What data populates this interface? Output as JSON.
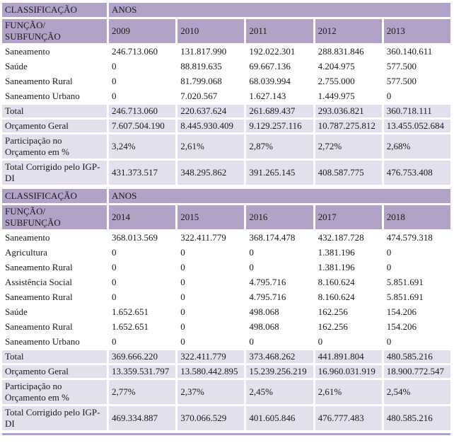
{
  "colors": {
    "header_bg": "#b2a2c7",
    "stripe_bg": "#e4dfec",
    "text": "#1a1a1a",
    "bottom_rule": "#b2a2c7"
  },
  "tables": [
    {
      "classification_label": "CLASSIFICAÇÃO",
      "years_label": "ANOS",
      "function_label": "FUNÇÃO/\nSUBFUNÇÃO",
      "years": [
        "2009",
        "2010",
        "2011",
        "2012",
        "2013"
      ],
      "rows": [
        {
          "label": "Saneamento",
          "striped": false,
          "tall": false,
          "values": [
            "246.713.060",
            "131.817.990",
            "192.022.301",
            "288.831.846",
            "360.140.611"
          ]
        },
        {
          "label": "Saúde",
          "striped": false,
          "tall": false,
          "values": [
            "0",
            "88.819.635",
            "69.667.136",
            "4.204.975",
            "577.500"
          ]
        },
        {
          "label": "Saneamento Rural",
          "striped": false,
          "tall": false,
          "values": [
            "0",
            "81.799.068",
            "68.039.994",
            "2.755.000",
            "577.500"
          ]
        },
        {
          "label": "Saneamento Urbano",
          "striped": false,
          "tall": false,
          "values": [
            "0",
            "7.020.567",
            "1.627.143",
            "1.449.975",
            "0"
          ]
        },
        {
          "label": "Total",
          "striped": true,
          "tall": false,
          "values": [
            "246.713.060",
            "220.637.624",
            "261.689.437",
            "293.036.821",
            "360.718.111"
          ]
        },
        {
          "label": "Orçamento Geral",
          "striped": true,
          "tall": false,
          "values": [
            "7.607.504.190",
            "8.445.930.409",
            "9.129.257.116",
            "10.787.275.812",
            "13.455.052.684"
          ]
        },
        {
          "label": "Participação no Orçamento em %",
          "striped": true,
          "tall": true,
          "values": [
            "3,24%",
            "2,61%",
            "2,87%",
            "2,72%",
            "2,68%"
          ]
        },
        {
          "label": "Total Corrigido pelo IGP-DI",
          "striped": true,
          "tall": true,
          "values": [
            "431.373.517",
            "348.295.862",
            "391.265.145",
            "408.587.775",
            "476.753.408"
          ]
        }
      ]
    },
    {
      "classification_label": "CLASSIFICAÇÃO",
      "years_label": "ANOS",
      "function_label": "FUNÇÃO/\nSUBFUNÇÃO",
      "years": [
        "2014",
        "2015",
        "2016",
        "2017",
        "2018"
      ],
      "rows": [
        {
          "label": "Saneamento",
          "striped": false,
          "tall": false,
          "values": [
            "368.013.569",
            "322.411.779",
            "368.174.478",
            "432.187.728",
            "474.579.318"
          ]
        },
        {
          "label": "Agricultura",
          "striped": false,
          "tall": false,
          "values": [
            "0",
            "0",
            "0",
            "1.381.196",
            "0"
          ]
        },
        {
          "label": "Saneamento Rural",
          "striped": false,
          "tall": false,
          "values": [
            "0",
            "0",
            "0",
            "1.381.196",
            "0"
          ]
        },
        {
          "label": "Assistência Social",
          "striped": false,
          "tall": false,
          "values": [
            "0",
            "0",
            "4.795.716",
            "8.160.624",
            "5.851.691"
          ]
        },
        {
          "label": "Saneamento Rural",
          "striped": false,
          "tall": false,
          "values": [
            "0",
            "0",
            "4.795.716",
            "8.160.624",
            "5.851.691"
          ]
        },
        {
          "label": "Saúde",
          "striped": false,
          "tall": false,
          "values": [
            "1.652.651",
            "0",
            "498.068",
            "162.256",
            "154.206"
          ]
        },
        {
          "label": "Saneamento Rural",
          "striped": false,
          "tall": false,
          "values": [
            "1.652.651",
            "0",
            "498.068",
            "162.256",
            "154.206"
          ]
        },
        {
          "label": "Saneamento Urbano",
          "striped": false,
          "tall": false,
          "values": [
            "0",
            "0",
            "0",
            "0",
            "0"
          ]
        },
        {
          "label": "Total",
          "striped": true,
          "tall": false,
          "values": [
            "369.666.220",
            "322.411.779",
            "373.468.262",
            "441.891.804",
            "480.585.216"
          ]
        },
        {
          "label": "Orçamento Geral",
          "striped": true,
          "tall": false,
          "values": [
            "13.359.531.797",
            "13.580.442.895",
            "15.239.256.219",
            "16.960.031.919",
            "18.900.772.547"
          ]
        },
        {
          "label": "Participação no Orçamento em %",
          "striped": true,
          "tall": true,
          "values": [
            "2,77%",
            "2,37%",
            "2,45%",
            "2,61%",
            "2,54%"
          ]
        },
        {
          "label": "Total Corrigido pelo IGP-DI",
          "striped": true,
          "tall": true,
          "values": [
            "469.334.887",
            "370.066.529",
            "401.605.846",
            "476.777.483",
            "480.585.216"
          ]
        }
      ]
    }
  ]
}
